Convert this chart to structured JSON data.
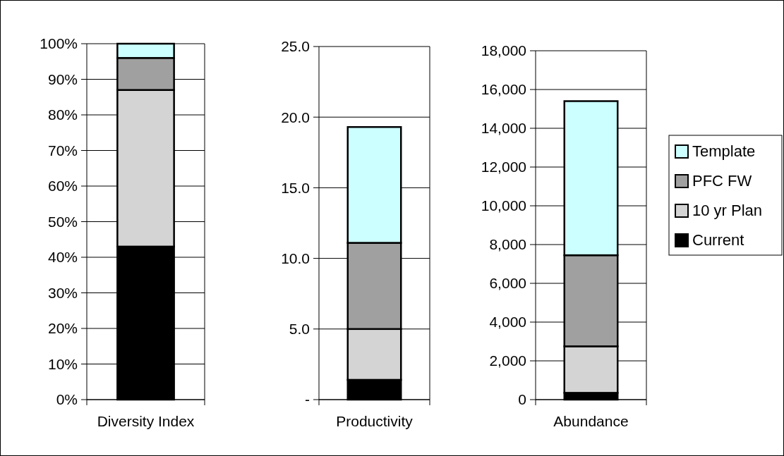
{
  "chart_data": [
    {
      "type": "bar",
      "stacked": true,
      "categories": [
        "Diversity Index"
      ],
      "grid": "y",
      "ylim": [
        0,
        100
      ],
      "yticks": [
        {
          "value": 0,
          "label": "0%"
        },
        {
          "value": 10,
          "label": "10%"
        },
        {
          "value": 20,
          "label": "20%"
        },
        {
          "value": 30,
          "label": "30%"
        },
        {
          "value": 40,
          "label": "40%"
        },
        {
          "value": 50,
          "label": "50%"
        },
        {
          "value": 60,
          "label": "60%"
        },
        {
          "value": 70,
          "label": "70%"
        },
        {
          "value": 80,
          "label": "80%"
        },
        {
          "value": 90,
          "label": "90%"
        },
        {
          "value": 100,
          "label": "100%"
        }
      ],
      "series": [
        {
          "color": "#000000",
          "values": [
            43
          ]
        },
        {
          "color": "#d4d4d4",
          "values": [
            44
          ]
        },
        {
          "color": "#a0a0a0",
          "values": [
            9
          ]
        },
        {
          "color": "#ccffff",
          "values": [
            4
          ]
        }
      ]
    },
    {
      "type": "bar",
      "stacked": true,
      "categories": [
        "Productivity"
      ],
      "grid": "y",
      "ylim": [
        0,
        25
      ],
      "yticks": [
        {
          "value": 0,
          "label": "-"
        },
        {
          "value": 5,
          "label": "5.0"
        },
        {
          "value": 10,
          "label": "10.0"
        },
        {
          "value": 15,
          "label": "15.0"
        },
        {
          "value": 20,
          "label": "20.0"
        },
        {
          "value": 25,
          "label": "25.0"
        }
      ],
      "series": [
        {
          "color": "#000000",
          "values": [
            1.4
          ]
        },
        {
          "color": "#d4d4d4",
          "values": [
            3.6
          ]
        },
        {
          "color": "#a0a0a0",
          "values": [
            6.1
          ]
        },
        {
          "color": "#ccffff",
          "values": [
            8.2
          ]
        }
      ]
    },
    {
      "type": "bar",
      "stacked": true,
      "categories": [
        "Abundance"
      ],
      "grid": "y",
      "legend": "right",
      "ylim": [
        0,
        18000
      ],
      "yticks": [
        0,
        {
          "value": 2000,
          "label": "2,000"
        },
        {
          "value": 4000,
          "label": "4,000"
        },
        {
          "value": 6000,
          "label": "6,000"
        },
        {
          "value": 8000,
          "label": "8,000"
        },
        {
          "value": 10000,
          "label": "10,000"
        },
        {
          "value": 12000,
          "label": "12,000"
        },
        {
          "value": 14000,
          "label": "14,000"
        },
        {
          "value": 16000,
          "label": "16,000"
        },
        {
          "value": 18000,
          "label": "18,000"
        }
      ],
      "series": [
        {
          "name": "Current",
          "color": "#000000",
          "values": [
            350
          ]
        },
        {
          "name": "10 yr Plan",
          "color": "#d4d4d4",
          "values": [
            2400
          ]
        },
        {
          "name": "PFC FW",
          "color": "#a0a0a0",
          "values": [
            4700
          ]
        },
        {
          "name": "Template",
          "color": "#ccffff",
          "values": [
            7950
          ]
        }
      ]
    }
  ]
}
